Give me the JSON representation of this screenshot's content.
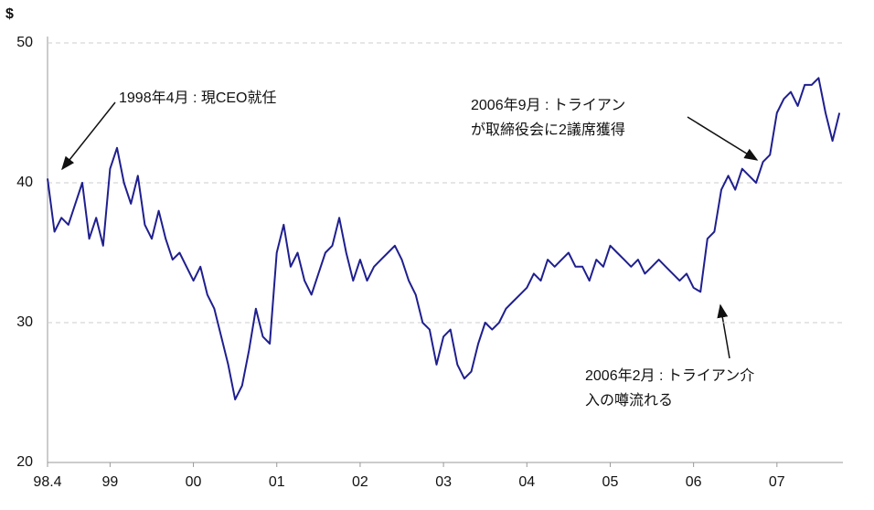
{
  "chart_data": {
    "type": "line",
    "y_unit": "$",
    "color": "#1f1f8f",
    "x": [
      0,
      1,
      2,
      3,
      4,
      5,
      6,
      7,
      8,
      9,
      10,
      11,
      12,
      13,
      14,
      15,
      16,
      17,
      18,
      19,
      20,
      21,
      22,
      23,
      24,
      25,
      26,
      27,
      28,
      29,
      30,
      31,
      32,
      33,
      34,
      35,
      36,
      37,
      38,
      39,
      40,
      41,
      42,
      43,
      44,
      45,
      46,
      47,
      48,
      49,
      50,
      51,
      52,
      53,
      54,
      55,
      56,
      57,
      58,
      59,
      60,
      61,
      62,
      63,
      64,
      65,
      66,
      67,
      68,
      69,
      70,
      71,
      72,
      73,
      74,
      75,
      76,
      77,
      78,
      79,
      80,
      81,
      82,
      83,
      84,
      85,
      86,
      87,
      88,
      89,
      90,
      91,
      92,
      93,
      94,
      95,
      96,
      97,
      98,
      99,
      100,
      101,
      102,
      103,
      104,
      105,
      106,
      107,
      108,
      109,
      110,
      111,
      112,
      113,
      114
    ],
    "values": [
      40.3,
      36.5,
      37.5,
      37,
      38.5,
      40,
      36,
      37.5,
      35.5,
      41,
      42.5,
      40,
      38.5,
      40.5,
      37,
      36,
      38,
      36,
      34.5,
      35,
      34,
      33,
      34,
      32,
      31,
      29,
      27,
      24.5,
      25.5,
      28,
      31,
      29,
      28.5,
      35,
      37,
      34,
      35,
      33,
      32,
      33.5,
      35,
      35.5,
      37.5,
      35,
      33,
      34.5,
      33,
      34,
      34.5,
      35,
      35.5,
      34.5,
      33,
      32,
      30,
      29.5,
      27,
      29,
      29.5,
      27,
      26,
      26.5,
      28.5,
      30,
      29.5,
      30,
      31,
      31.5,
      32,
      32.5,
      33.5,
      33,
      34.5,
      34,
      34.5,
      35,
      34,
      34,
      33,
      34.5,
      34,
      35.5,
      35,
      34.5,
      34,
      34.5,
      33.5,
      34,
      34.5,
      34,
      33.5,
      33,
      33.5,
      32.5,
      32.2,
      36,
      36.5,
      39.5,
      40.5,
      39.5,
      41,
      40.5,
      40,
      41.5,
      42,
      45,
      46,
      46.5,
      45.5,
      47,
      47,
      47.5,
      45,
      43,
      45
    ],
    "xlim": [
      0,
      114.5
    ],
    "xticks": [
      {
        "value": 0,
        "label": "98.4"
      },
      {
        "value": 9,
        "label": "99"
      },
      {
        "value": 21,
        "label": "00"
      },
      {
        "value": 33,
        "label": "01"
      },
      {
        "value": 45,
        "label": "02"
      },
      {
        "value": 57,
        "label": "03"
      },
      {
        "value": 69,
        "label": "04"
      },
      {
        "value": 81,
        "label": "05"
      },
      {
        "value": 93,
        "label": "06"
      },
      {
        "value": 105,
        "label": "07"
      }
    ],
    "ylim": [
      20,
      50
    ],
    "yticks": [
      20,
      30,
      40,
      50
    ],
    "grid": true,
    "annotations": [
      {
        "lines": [
          "1998年4月 : 現CEO就任"
        ]
      },
      {
        "lines": [
          "2006年9月 : トライアン",
          "が取締役会に2議席獲得"
        ]
      },
      {
        "lines": [
          "2006年2月 : トライアン介",
          "入の噂流れる"
        ]
      }
    ]
  }
}
